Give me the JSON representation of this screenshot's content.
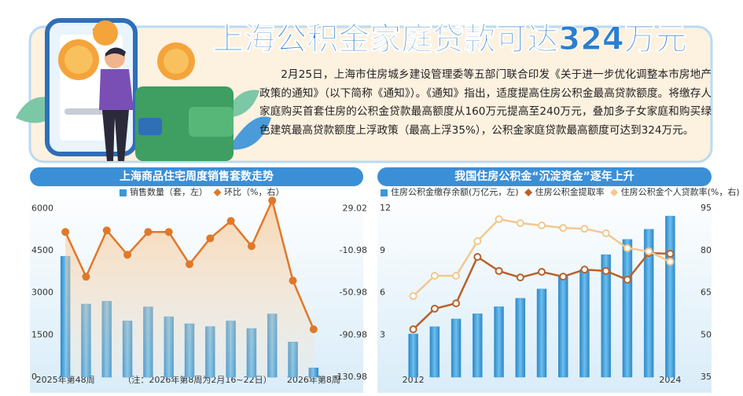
{
  "header": {
    "title": "上海公积金家庭贷款可达324万元",
    "paragraph": "2月25日，上海市住房城乡建设管理委等五部门联合印发《关于进一步优化调整本市房地产政策的通知》（以下简称《通知》）。《通知》指出，适度提高住房公积金最高贷款额度。将缴存人家庭购买首套住房的公积金贷款最高额度从160万元提高至240万元，叠加多子女家庭和购买绿色建筑最高贷款额度上浮政策（最高上浮35%），公积金家庭贷款最高额度可达到324万元。"
  },
  "chart_data": [
    {
      "type": "combo",
      "title": "上海商品住宅周度销售套数走势",
      "categories": [
        "2025年第48周",
        null,
        null,
        null,
        null,
        null,
        null,
        null,
        null,
        null,
        null,
        null,
        "2026年第8周"
      ],
      "annotation": "（注：2026年第8周为2月16~22日）",
      "series": [
        {
          "name": "销售数量（套，左）",
          "type": "bar",
          "color": "#3a98d6",
          "values": [
            4300,
            2600,
            2700,
            2000,
            2500,
            2150,
            1900,
            1800,
            2000,
            1730,
            2250,
            1250,
            330
          ]
        },
        {
          "name": "环比（%，右）",
          "type": "line",
          "axis": "y2",
          "color": "#e0782a",
          "area": true,
          "values": [
            6.7,
            -35.7,
            8.2,
            -14.9,
            6.7,
            6.7,
            -23.8,
            0.7,
            17.1,
            -6.7,
            36.5,
            -39.4,
            -85.6
          ]
        }
      ],
      "ylim": [
        0,
        6400
      ],
      "yticks": [
        0,
        1500,
        3000,
        4500,
        6000
      ],
      "y2lim": [
        -130.98,
        39.69
      ],
      "y2ticks": [
        -130.98,
        -90.98,
        -50.98,
        -10.98,
        29.02
      ],
      "grid": false
    },
    {
      "type": "combo",
      "title": "我国住房公积金“沉淀资金”逐年上升",
      "categories": [
        "2012",
        null,
        null,
        null,
        null,
        null,
        null,
        null,
        null,
        null,
        null,
        null,
        "2024"
      ],
      "series": [
        {
          "name": "住房公积金缴存余额(万亿元，左)",
          "type": "bar",
          "color": "#3a98d6",
          "values": [
            3.07,
            3.58,
            4.13,
            4.5,
            5.0,
            5.6,
            6.26,
            7.15,
            7.65,
            8.7,
            9.78,
            10.5,
            11.44
          ]
        },
        {
          "name": "住房公积金提取率",
          "type": "line",
          "axis": "y2",
          "color": "#b8612a",
          "values": [
            52.0,
            59.3,
            61.2,
            77.7,
            72.7,
            70.4,
            72.4,
            70.7,
            73.2,
            72.7,
            69.6,
            79.1,
            78.8
          ]
        },
        {
          "name": "住房公积金个人贷款率(%，右)",
          "type": "line",
          "axis": "y2",
          "color": "#f2c88e",
          "values": [
            63.8,
            71.0,
            71.0,
            83.3,
            91.1,
            89.7,
            88.9,
            88.0,
            87.7,
            86.1,
            80.8,
            79.7,
            76.0
          ]
        }
      ],
      "ylim": [
        0,
        12
      ],
      "yticks": [
        3,
        6,
        9,
        12
      ],
      "y2lim": [
        35,
        95
      ],
      "y2ticks": [
        35,
        50,
        65,
        80,
        95
      ],
      "grid": false
    }
  ]
}
